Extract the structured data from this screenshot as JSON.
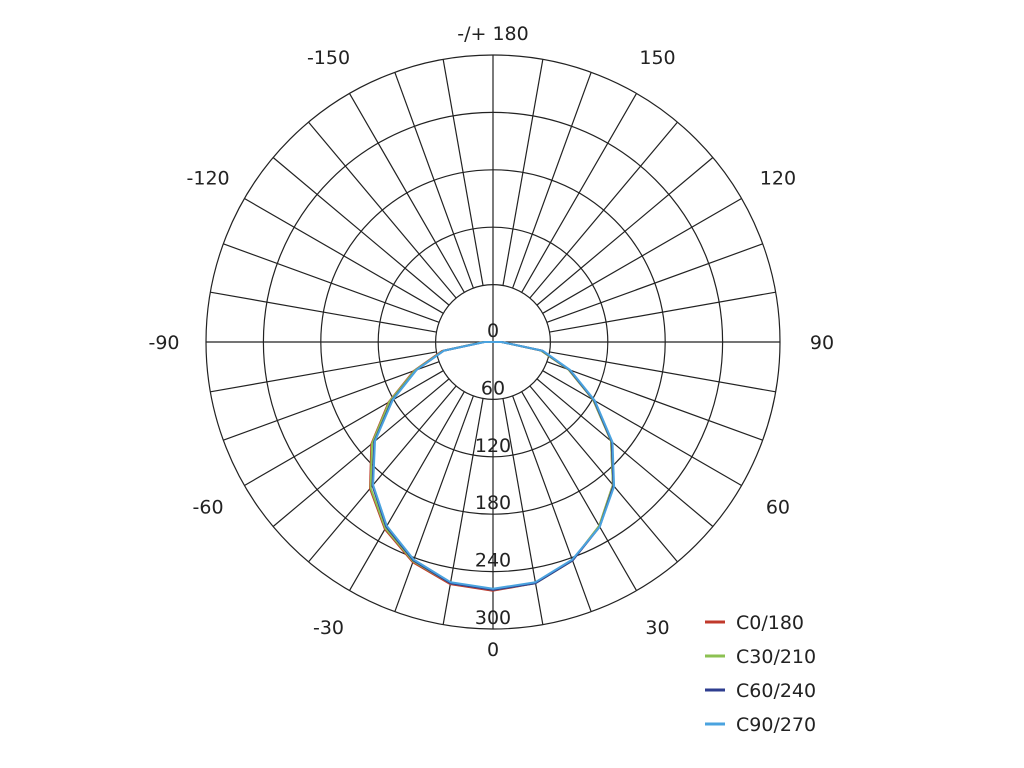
{
  "chart_data": {
    "type": "polar-line",
    "title": "",
    "angle_labels": [
      "-/+ 180",
      "150",
      "120",
      "90",
      "60",
      "30",
      "0",
      "-30",
      "-60",
      "-90",
      "-120",
      "-150"
    ],
    "radial_ticks": [
      "0",
      "60",
      "120",
      "180",
      "240",
      "300"
    ],
    "radial_range": [
      0,
      300
    ],
    "angular_grid_step_deg": 10,
    "grid": true,
    "legend_placement": "bottom-right",
    "gamma": [
      -180,
      -170,
      -160,
      -150,
      -140,
      -130,
      -120,
      -110,
      -100,
      -90,
      -80,
      -70,
      -60,
      -50,
      -40,
      -30,
      -20,
      -10,
      0,
      10,
      20,
      30,
      40,
      50,
      60,
      70,
      80,
      90,
      100,
      110,
      120,
      130,
      140,
      150,
      160,
      170,
      180
    ],
    "series": [
      {
        "name": "C0/180",
        "color": "#c0392b",
        "values": [
          0,
          0,
          0,
          0,
          0,
          0,
          0,
          0,
          0,
          10,
          54,
          88,
          126,
          166,
          200,
          226,
          245,
          257,
          260,
          256,
          243,
          222,
          195,
          161,
          121,
          84,
          51,
          9,
          0,
          0,
          0,
          0,
          0,
          0,
          0,
          0,
          0
        ]
      },
      {
        "name": "C30/210",
        "color": "#8cc152",
        "values": [
          0,
          0,
          0,
          0,
          0,
          0,
          0,
          0,
          0,
          10,
          53,
          87,
          125,
          165,
          199,
          225,
          244,
          256,
          259,
          256,
          243,
          222,
          195,
          161,
          121,
          84,
          51,
          9,
          0,
          0,
          0,
          0,
          0,
          0,
          0,
          0,
          0
        ]
      },
      {
        "name": "C60/240",
        "color": "#2e3d8f",
        "values": [
          0,
          0,
          0,
          0,
          0,
          0,
          0,
          0,
          0,
          9,
          52,
          85,
          122,
          162,
          196,
          223,
          243,
          256,
          259,
          256,
          243,
          223,
          196,
          162,
          122,
          85,
          52,
          9,
          0,
          0,
          0,
          0,
          0,
          0,
          0,
          0,
          0
        ]
      },
      {
        "name": "C90/270",
        "color": "#4aa3df",
        "values": [
          0,
          0,
          0,
          0,
          0,
          0,
          0,
          0,
          0,
          9,
          52,
          85,
          121,
          161,
          195,
          222,
          242,
          255,
          258,
          255,
          242,
          223,
          197,
          163,
          123,
          86,
          53,
          9,
          0,
          0,
          0,
          0,
          0,
          0,
          0,
          0,
          0
        ]
      }
    ]
  }
}
